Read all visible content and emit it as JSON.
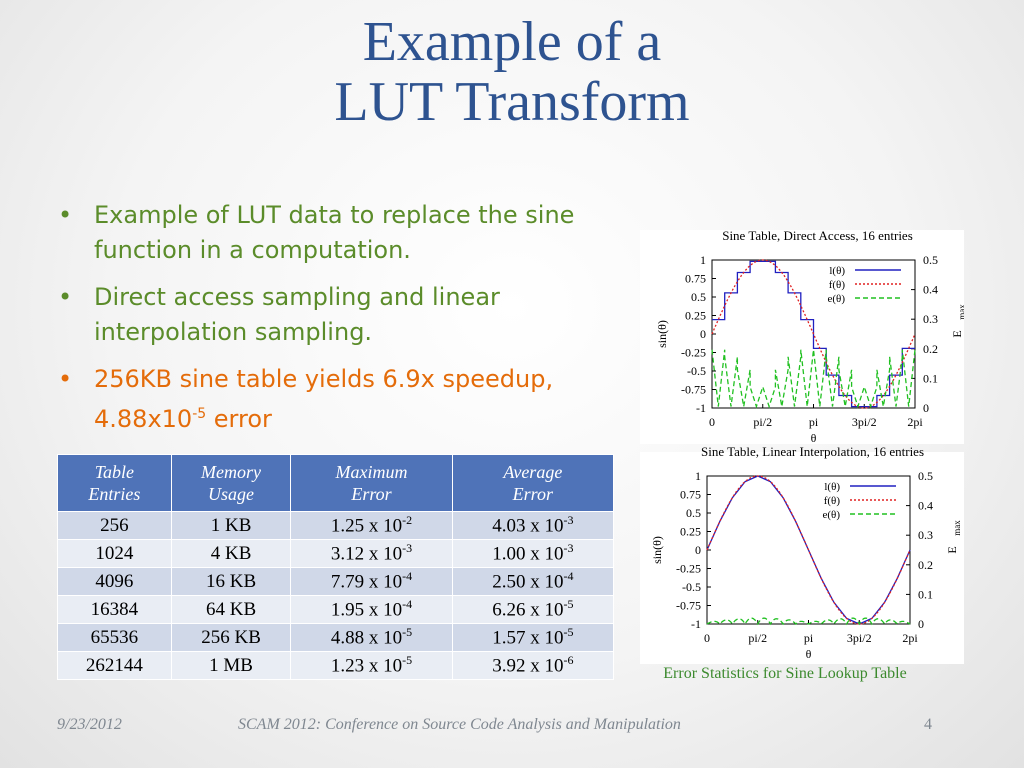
{
  "title": {
    "line1": "Example of a",
    "line2": "LUT Transform"
  },
  "bullets": [
    {
      "text": "Example of LUT data to replace the sine function in a computation."
    },
    {
      "text": "Direct access sampling and linear interpolation sampling."
    },
    {
      "text_pre": "256KB sine table yields 6.9x speedup, 4.88x10",
      "sup": "-5",
      "text_post": " error"
    }
  ],
  "bullet_glyph": "•",
  "colors": {
    "title": "#2E5390",
    "bullet_text": "#5B8C2A",
    "highlight_text": "#E46C0A",
    "table_header": "#4F73B8",
    "caption": "#3C8A2E"
  },
  "table": {
    "headers": [
      {
        "line1": "Table",
        "line2": "Entries"
      },
      {
        "line1": "Memory",
        "line2": "Usage"
      },
      {
        "line1": "Maximum",
        "line2": "Error"
      },
      {
        "line1": "Average",
        "line2": "Error"
      }
    ],
    "rows": [
      {
        "entries": "256",
        "memory": "1 KB",
        "max_base": "1.25 x 10",
        "max_exp": "-2",
        "avg_base": "4.03 x 10",
        "avg_exp": "-3"
      },
      {
        "entries": "1024",
        "memory": "4 KB",
        "max_base": "3.12 x 10",
        "max_exp": "-3",
        "avg_base": "1.00 x 10",
        "avg_exp": "-3"
      },
      {
        "entries": "4096",
        "memory": "16 KB",
        "max_base": "7.79 x 10",
        "max_exp": "-4",
        "avg_base": "2.50 x 10",
        "avg_exp": "-4"
      },
      {
        "entries": "16384",
        "memory": "64 KB",
        "max_base": "1.95 x 10",
        "max_exp": "-4",
        "avg_base": "6.26 x 10",
        "avg_exp": "-5"
      },
      {
        "entries": "65536",
        "memory": "256 KB",
        "max_base": "4.88 x 10",
        "max_exp": "-5",
        "avg_base": "1.57 x 10",
        "avg_exp": "-5"
      },
      {
        "entries": "262144",
        "memory": "1 MB",
        "max_base": "1.23 x 10",
        "max_exp": "-5",
        "avg_base": "3.92 x 10",
        "avg_exp": "-6"
      }
    ]
  },
  "chart_data": [
    {
      "type": "line",
      "title": "Sine Table, Direct Access, 16 entries",
      "xlabel": "θ",
      "ylabel": "sin(θ)",
      "y2label": "E",
      "y2label_sub": "max",
      "xticks": [
        "0",
        "pi/2",
        "pi",
        "3pi/2",
        "2pi"
      ],
      "xlim": [
        0,
        6.2832
      ],
      "yticks": [
        "1",
        "0.75",
        "0.5",
        "0.25",
        "0",
        "-0.25",
        "-0.5",
        "-0.75",
        "-1"
      ],
      "ylim": [
        -1,
        1
      ],
      "y2ticks": [
        "0.5",
        "0.4",
        "0.3",
        "0.2",
        "0.1",
        "0"
      ],
      "y2lim": [
        0,
        0.5
      ],
      "legend_position": "top-right",
      "series": [
        {
          "name": "l(θ)",
          "color": "#2020C0",
          "dash": "",
          "kind": "step",
          "n": 16
        },
        {
          "name": "f(θ)",
          "color": "#E02020",
          "dash": "2,2",
          "kind": "sin"
        },
        {
          "name": "e(θ)",
          "color": "#20C020",
          "dash": "5,3",
          "kind": "err_direct",
          "n": 16,
          "peak": 0.2
        }
      ]
    },
    {
      "type": "line",
      "title": "Sine Table, Linear Interpolation, 16 entries",
      "xlabel": "θ",
      "ylabel": "sin(θ)",
      "y2label": "E",
      "y2label_sub": "max",
      "xticks": [
        "0",
        "pi/2",
        "pi",
        "3pi/2",
        "2pi"
      ],
      "xlim": [
        0,
        6.2832
      ],
      "yticks": [
        "1",
        "0.75",
        "0.5",
        "0.25",
        "0",
        "-0.25",
        "-0.5",
        "-0.75",
        "-1"
      ],
      "ylim": [
        -1,
        1
      ],
      "y2ticks": [
        "0.5",
        "0.4",
        "0.3",
        "0.2",
        "0.1",
        "0"
      ],
      "y2lim": [
        0,
        0.5
      ],
      "legend_position": "top-right",
      "series": [
        {
          "name": "l(θ)",
          "color": "#2020C0",
          "dash": "",
          "kind": "linear",
          "n": 16
        },
        {
          "name": "f(θ)",
          "color": "#E02020",
          "dash": "2,2",
          "kind": "sin"
        },
        {
          "name": "e(θ)",
          "color": "#20C020",
          "dash": "5,3",
          "kind": "err_interp",
          "n": 16,
          "peak": 0.02
        }
      ]
    }
  ],
  "chart_caption": "Error Statistics for Sine Lookup Table",
  "footer": {
    "date": "9/23/2012",
    "conference": "SCAM 2012: Conference on Source Code Analysis and Manipulation",
    "page": "4"
  }
}
